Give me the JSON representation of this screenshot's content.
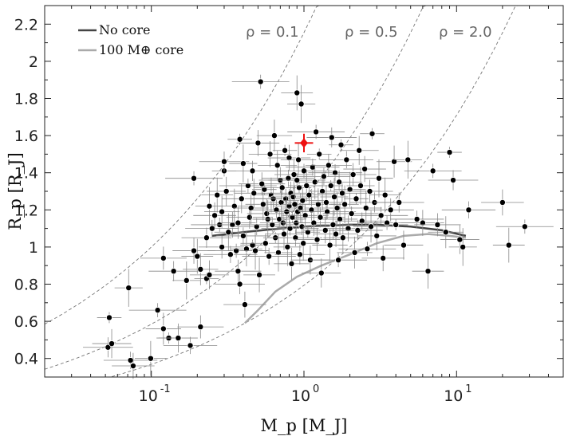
{
  "chart_data": {
    "type": "scatter",
    "xlabel": "M_p [M_J]",
    "ylabel": "R_p [R_J]",
    "xscale": "log",
    "xlim": [
      0.02,
      50
    ],
    "ylim": [
      0.3,
      2.3
    ],
    "grid": false,
    "legend_position": "top-left",
    "x_ticks": [
      {
        "value": 0.1,
        "label": "10",
        "exp": "-1"
      },
      {
        "value": 1,
        "label": "10",
        "exp": "0"
      },
      {
        "value": 10,
        "label": "10",
        "exp": "1"
      }
    ],
    "y_ticks": [
      {
        "value": 0.4,
        "label": "0.4"
      },
      {
        "value": 0.6,
        "label": "0.6"
      },
      {
        "value": 0.8,
        "label": "0.8"
      },
      {
        "value": 1.0,
        "label": "1"
      },
      {
        "value": 1.2,
        "label": "1.2"
      },
      {
        "value": 1.4,
        "label": "1.4"
      },
      {
        "value": 1.6,
        "label": "1.6"
      },
      {
        "value": 1.8,
        "label": "1.8"
      },
      {
        "value": 2.0,
        "label": "2"
      },
      {
        "value": 2.2,
        "label": "2.2"
      }
    ],
    "density_curves": [
      {
        "label": "ρ = 0.1",
        "rho": 0.1
      },
      {
        "label": "ρ = 0.5",
        "rho": 0.5
      },
      {
        "label": "ρ = 2.0",
        "rho": 2.0
      }
    ],
    "model_curves": [
      {
        "name": "No core",
        "color": "#444444",
        "points": [
          [
            0.25,
            1.06
          ],
          [
            0.4,
            1.08
          ],
          [
            0.7,
            1.1
          ],
          [
            1.0,
            1.11
          ],
          [
            2.0,
            1.12
          ],
          [
            3.0,
            1.12
          ],
          [
            5.0,
            1.11
          ],
          [
            8.0,
            1.09
          ],
          [
            11.5,
            1.06
          ]
        ]
      },
      {
        "name": "100 M⊕ core",
        "color": "#aaaaaa",
        "points": [
          [
            0.41,
            0.59
          ],
          [
            0.5,
            0.66
          ],
          [
            0.65,
            0.76
          ],
          [
            0.9,
            0.84
          ],
          [
            1.3,
            0.9
          ],
          [
            2.0,
            0.96
          ],
          [
            3.0,
            1.02
          ],
          [
            4.5,
            1.06
          ],
          [
            6.5,
            1.07
          ],
          [
            9.0,
            1.06
          ],
          [
            11.5,
            1.05
          ]
        ]
      }
    ],
    "highlight_point": {
      "x": 1.0,
      "y": 1.56,
      "xerr": 0.06,
      "yerr": 0.05,
      "color": "#ee1111"
    },
    "points": [
      [
        0.053,
        0.62
      ],
      [
        0.052,
        0.46
      ],
      [
        0.055,
        0.48
      ],
      [
        0.071,
        0.78
      ],
      [
        0.073,
        0.39
      ],
      [
        0.076,
        0.36
      ],
      [
        0.099,
        0.4
      ],
      [
        0.11,
        0.66
      ],
      [
        0.12,
        0.94
      ],
      [
        0.12,
        0.56
      ],
      [
        0.13,
        0.51
      ],
      [
        0.14,
        0.87
      ],
      [
        0.15,
        0.51
      ],
      [
        0.17,
        0.82
      ],
      [
        0.18,
        0.47
      ],
      [
        0.19,
        0.98
      ],
      [
        0.2,
        0.95
      ],
      [
        0.19,
        1.37
      ],
      [
        0.21,
        0.57
      ],
      [
        0.21,
        0.88
      ],
      [
        0.23,
        0.83
      ],
      [
        0.23,
        1.05
      ],
      [
        0.24,
        0.85
      ],
      [
        0.24,
        1.22
      ],
      [
        0.25,
        1.1
      ],
      [
        0.26,
        1.17
      ],
      [
        0.27,
        1.28
      ],
      [
        0.28,
        1.12
      ],
      [
        0.29,
        1.0
      ],
      [
        0.29,
        1.19
      ],
      [
        0.3,
        1.41
      ],
      [
        0.3,
        1.46
      ],
      [
        0.31,
        1.3
      ],
      [
        0.32,
        1.08
      ],
      [
        0.33,
        0.96
      ],
      [
        0.34,
        1.12
      ],
      [
        0.35,
        1.22
      ],
      [
        0.36,
        0.98
      ],
      [
        0.37,
        0.87
      ],
      [
        0.37,
        1.13
      ],
      [
        0.38,
        1.58
      ],
      [
        0.38,
        0.8
      ],
      [
        0.39,
        1.26
      ],
      [
        0.4,
        1.45
      ],
      [
        0.4,
        1.06
      ],
      [
        0.41,
        0.69
      ],
      [
        0.42,
        0.99
      ],
      [
        0.43,
        1.33
      ],
      [
        0.44,
        1.16
      ],
      [
        0.45,
        1.21
      ],
      [
        0.46,
        1.01
      ],
      [
        0.46,
        1.41
      ],
      [
        0.47,
        1.29
      ],
      [
        0.48,
        0.98
      ],
      [
        0.49,
        1.11
      ],
      [
        0.5,
        1.56
      ],
      [
        0.51,
        0.85
      ],
      [
        0.52,
        1.89
      ],
      [
        0.53,
        1.34
      ],
      [
        0.54,
        1.23
      ],
      [
        0.55,
        1.31
      ],
      [
        0.56,
        1.02
      ],
      [
        0.57,
        1.18
      ],
      [
        0.58,
        1.15
      ],
      [
        0.59,
        0.95
      ],
      [
        0.6,
        1.5
      ],
      [
        0.61,
        1.28
      ],
      [
        0.62,
        1.12
      ],
      [
        0.63,
        1.26
      ],
      [
        0.64,
        1.6
      ],
      [
        0.65,
        1.05
      ],
      [
        0.66,
        1.2
      ],
      [
        0.67,
        1.44
      ],
      [
        0.68,
        0.97
      ],
      [
        0.69,
        1.15
      ],
      [
        0.7,
        1.36
      ],
      [
        0.71,
        1.24
      ],
      [
        0.72,
        1.32
      ],
      [
        0.73,
        1.13
      ],
      [
        0.74,
        1.07
      ],
      [
        0.75,
        1.52
      ],
      [
        0.76,
        1.26
      ],
      [
        0.77,
        1.19
      ],
      [
        0.78,
        1.0
      ],
      [
        0.79,
        1.37
      ],
      [
        0.8,
        1.48
      ],
      [
        0.8,
        1.22
      ],
      [
        0.81,
        1.1
      ],
      [
        0.82,
        1.29
      ],
      [
        0.83,
        0.91
      ],
      [
        0.84,
        1.16
      ],
      [
        0.85,
        1.27
      ],
      [
        0.86,
        1.39
      ],
      [
        0.87,
        1.23
      ],
      [
        0.88,
        1.05
      ],
      [
        0.89,
        1.13
      ],
      [
        0.9,
        1.83
      ],
      [
        0.9,
        1.36
      ],
      [
        0.91,
        1.19
      ],
      [
        0.92,
        1.47
      ],
      [
        0.93,
        1.32
      ],
      [
        0.94,
        0.96
      ],
      [
        0.95,
        1.21
      ],
      [
        0.96,
        1.77
      ],
      [
        0.97,
        1.11
      ],
      [
        0.98,
        1.25
      ],
      [
        0.99,
        1.02
      ],
      [
        1.0,
        1.41
      ],
      [
        1.02,
        1.17
      ],
      [
        1.04,
        1.33
      ],
      [
        1.06,
        1.08
      ],
      [
        1.08,
        1.28
      ],
      [
        1.1,
        0.93
      ],
      [
        1.12,
        1.2
      ],
      [
        1.14,
        1.43
      ],
      [
        1.16,
        1.13
      ],
      [
        1.18,
        1.35
      ],
      [
        1.2,
        1.62
      ],
      [
        1.22,
        1.04
      ],
      [
        1.24,
        1.23
      ],
      [
        1.26,
        1.5
      ],
      [
        1.28,
        1.16
      ],
      [
        1.3,
        0.86
      ],
      [
        1.32,
        1.3
      ],
      [
        1.35,
        1.38
      ],
      [
        1.38,
        1.09
      ],
      [
        1.4,
        1.24
      ],
      [
        1.42,
        1.19
      ],
      [
        1.45,
        1.44
      ],
      [
        1.48,
        1.01
      ],
      [
        1.5,
        1.33
      ],
      [
        1.52,
        1.59
      ],
      [
        1.55,
        1.12
      ],
      [
        1.58,
        1.27
      ],
      [
        1.6,
        1.4
      ],
      [
        1.62,
        1.07
      ],
      [
        1.65,
        1.21
      ],
      [
        1.68,
        0.93
      ],
      [
        1.7,
        1.35
      ],
      [
        1.72,
        1.15
      ],
      [
        1.75,
        1.55
      ],
      [
        1.78,
        1.29
      ],
      [
        1.8,
        1.05
      ],
      [
        1.85,
        1.23
      ],
      [
        1.9,
        1.47
      ],
      [
        1.95,
        1.1
      ],
      [
        2.0,
        1.31
      ],
      [
        2.05,
        1.18
      ],
      [
        2.1,
        1.39
      ],
      [
        2.15,
        0.97
      ],
      [
        2.2,
        1.26
      ],
      [
        2.25,
        1.09
      ],
      [
        2.3,
        1.52
      ],
      [
        2.35,
        1.33
      ],
      [
        2.4,
        1.14
      ],
      [
        2.5,
        1.42
      ],
      [
        2.55,
        1.21
      ],
      [
        2.6,
        0.99
      ],
      [
        2.7,
        1.3
      ],
      [
        2.75,
        1.11
      ],
      [
        2.8,
        1.61
      ],
      [
        2.9,
        1.24
      ],
      [
        3.0,
        1.06
      ],
      [
        3.1,
        1.37
      ],
      [
        3.2,
        1.17
      ],
      [
        3.3,
        0.94
      ],
      [
        3.4,
        1.28
      ],
      [
        3.5,
        1.13
      ],
      [
        3.7,
        1.2
      ],
      [
        3.9,
        1.46
      ],
      [
        4.0,
        1.12
      ],
      [
        4.2,
        1.24
      ],
      [
        4.5,
        1.01
      ],
      [
        4.8,
        1.47
      ],
      [
        5.5,
        1.15
      ],
      [
        6.0,
        1.13
      ],
      [
        6.5,
        0.87
      ],
      [
        7.0,
        1.41
      ],
      [
        7.5,
        1.12
      ],
      [
        8.5,
        1.08
      ],
      [
        9.0,
        1.51
      ],
      [
        9.5,
        1.36
      ],
      [
        10.5,
        1.04
      ],
      [
        11.0,
        1.0
      ],
      [
        12.0,
        1.2
      ],
      [
        20.0,
        1.24
      ],
      [
        22.0,
        1.01
      ],
      [
        28.0,
        1.11
      ]
    ]
  },
  "legend": [
    {
      "label": "No core",
      "color": "#444444"
    },
    {
      "label": "100 M⊕ core",
      "color": "#aaaaaa"
    }
  ]
}
